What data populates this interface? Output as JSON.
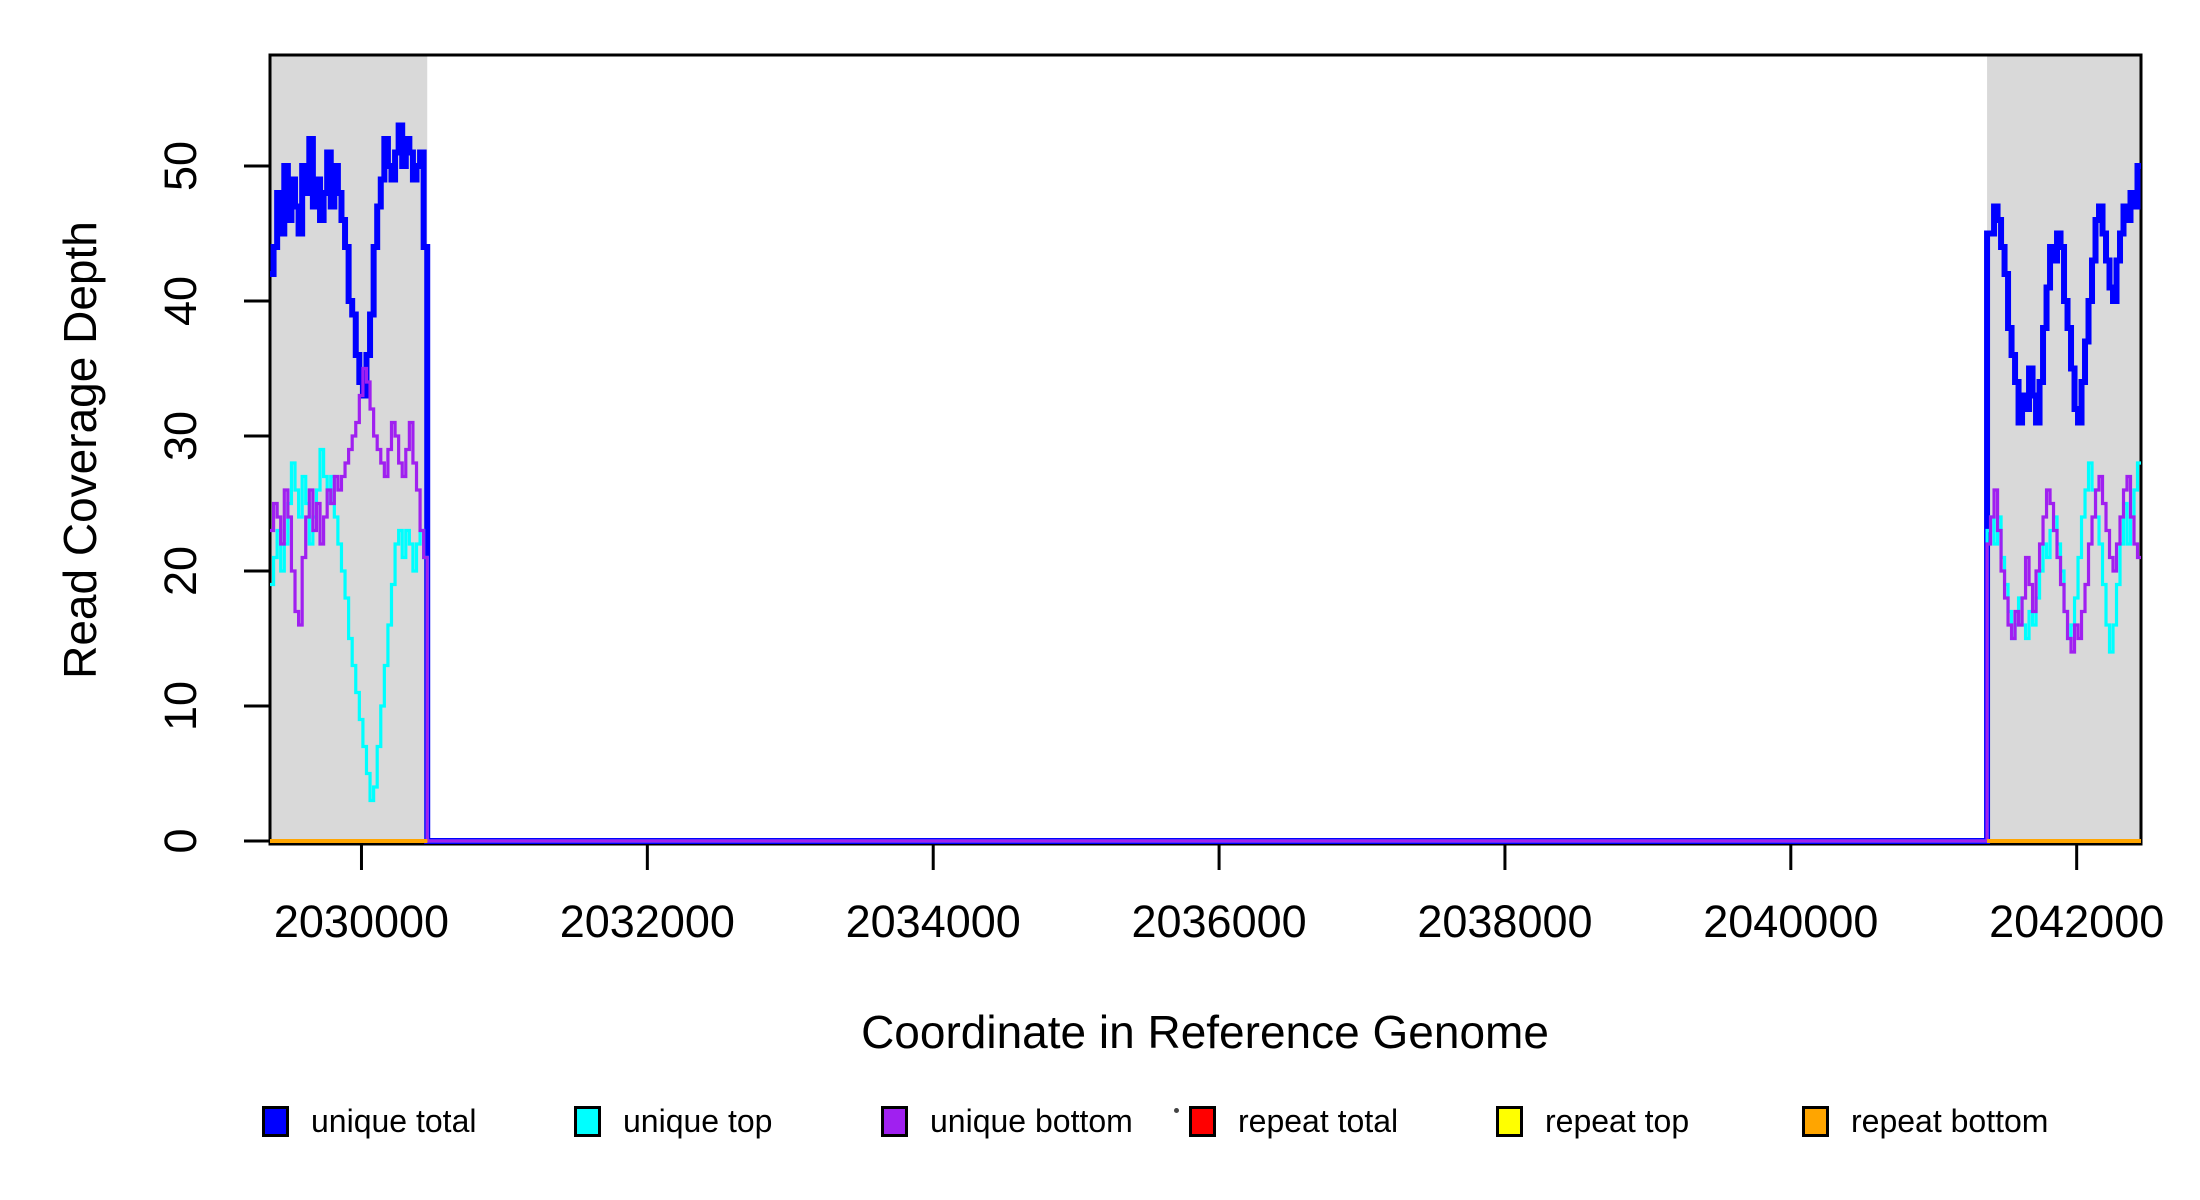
{
  "chart_data": {
    "type": "line",
    "subtype": "step",
    "title": "",
    "xlabel": "Coordinate in Reference Genome",
    "ylabel": "Read Coverage Depth",
    "xlim": [
      2029360,
      2042450
    ],
    "ylim": [
      0,
      58
    ],
    "xticks": [
      2030000,
      2032000,
      2034000,
      2036000,
      2038000,
      2040000,
      2042000
    ],
    "yticks": [
      0,
      10,
      20,
      30,
      40,
      50
    ],
    "grid": false,
    "legend_position": "bottom",
    "shade_color": "#d9d9d9",
    "shaded_regions": [
      [
        2029360,
        2030460
      ],
      [
        2041373,
        2042450
      ]
    ],
    "series": [
      {
        "name": "unique total",
        "color": "#0000FF",
        "lwd": 6,
        "segments": [
          {
            "x0": 2029360,
            "x1": 2030460,
            "values": [
              42,
              44,
              48,
              45,
              50,
              46,
              49,
              47,
              45,
              50,
              48,
              52,
              47,
              49,
              46,
              48,
              51,
              47,
              50,
              48,
              46,
              44,
              40,
              39,
              36,
              34,
              33,
              36,
              39,
              44,
              47,
              49,
              52,
              50,
              49,
              51,
              53,
              50,
              52,
              51,
              49,
              50,
              51,
              44
            ]
          },
          {
            "x0": 2030460,
            "x1": 2041373,
            "values": [
              0
            ]
          },
          {
            "x0": 2041373,
            "x1": 2042450,
            "values": [
              45,
              45,
              47,
              46,
              44,
              42,
              38,
              36,
              34,
              31,
              33,
              32,
              35,
              33,
              31,
              34,
              38,
              41,
              44,
              43,
              45,
              44,
              40,
              38,
              35,
              32,
              31,
              34,
              37,
              40,
              43,
              46,
              47,
              45,
              43,
              41,
              40,
              43,
              45,
              47,
              46,
              48,
              47,
              50
            ]
          }
        ]
      },
      {
        "name": "unique top",
        "color": "#00FFFF",
        "lwd": 3.2,
        "segments": [
          {
            "x0": 2029360,
            "x1": 2030460,
            "values": [
              19,
              21,
              23,
              20,
              22,
              25,
              28,
              26,
              24,
              27,
              25,
              22,
              24,
              26,
              29,
              27,
              25,
              27,
              24,
              22,
              20,
              18,
              15,
              13,
              11,
              9,
              7,
              5,
              3,
              4,
              7,
              10,
              13,
              16,
              19,
              22,
              23,
              21,
              23,
              22,
              20,
              22,
              23,
              21
            ]
          },
          {
            "x0": 2030460,
            "x1": 2041373,
            "values": [
              0
            ]
          },
          {
            "x0": 2041373,
            "x1": 2042450,
            "values": [
              23,
              24,
              22,
              24,
              21,
              19,
              17,
              15,
              16,
              18,
              16,
              15,
              17,
              16,
              18,
              20,
              22,
              21,
              23,
              24,
              22,
              20,
              17,
              15,
              16,
              18,
              21,
              24,
              26,
              28,
              26,
              24,
              22,
              19,
              16,
              14,
              16,
              19,
              22,
              25,
              22,
              24,
              26,
              28
            ]
          }
        ]
      },
      {
        "name": "unique bottom",
        "color": "#A020F0",
        "lwd": 3.2,
        "segments": [
          {
            "x0": 2029360,
            "x1": 2030460,
            "values": [
              23,
              25,
              24,
              22,
              26,
              24,
              20,
              17,
              16,
              21,
              24,
              26,
              23,
              25,
              22,
              24,
              26,
              25,
              27,
              26,
              27,
              28,
              29,
              30,
              31,
              33,
              35,
              34,
              32,
              30,
              29,
              28,
              27,
              29,
              31,
              30,
              28,
              27,
              29,
              31,
              28,
              26,
              23,
              21
            ]
          },
          {
            "x0": 2030460,
            "x1": 2041373,
            "values": [
              0
            ]
          },
          {
            "x0": 2041373,
            "x1": 2042450,
            "values": [
              22,
              24,
              26,
              23,
              20,
              18,
              16,
              15,
              17,
              16,
              18,
              21,
              19,
              17,
              20,
              22,
              24,
              26,
              25,
              23,
              21,
              19,
              17,
              15,
              14,
              16,
              15,
              17,
              19,
              22,
              24,
              26,
              27,
              25,
              23,
              21,
              20,
              22,
              24,
              26,
              27,
              24,
              22,
              21
            ]
          }
        ]
      },
      {
        "name": "repeat total",
        "color": "#FF0000",
        "lwd": 3.2,
        "segments": [
          {
            "x0": 2029360,
            "x1": 2030460,
            "values": [
              0
            ]
          },
          {
            "x0": 2041373,
            "x1": 2042450,
            "values": [
              0
            ]
          }
        ]
      },
      {
        "name": "repeat top",
        "color": "#FFFF00",
        "lwd": 3.2,
        "segments": [
          {
            "x0": 2029360,
            "x1": 2030460,
            "values": [
              0
            ]
          },
          {
            "x0": 2041373,
            "x1": 2042450,
            "values": [
              0
            ]
          }
        ]
      },
      {
        "name": "repeat bottom",
        "color": "#FFA500",
        "lwd": 4,
        "segments": [
          {
            "x0": 2029360,
            "x1": 2030460,
            "values": [
              0
            ]
          },
          {
            "x0": 2041373,
            "x1": 2042450,
            "values": [
              0
            ]
          }
        ]
      }
    ]
  }
}
